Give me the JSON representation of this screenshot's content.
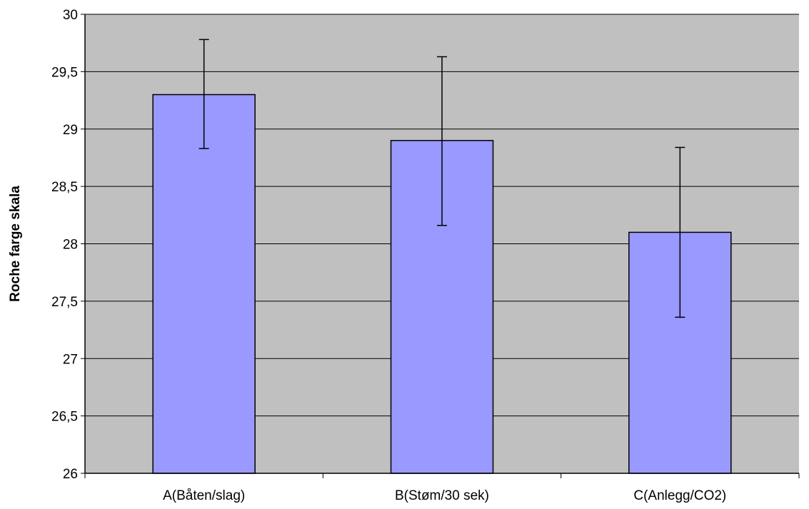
{
  "chart_data": {
    "type": "bar",
    "title": "",
    "xlabel": "",
    "ylabel": "Roche farge skala",
    "categories": [
      "A(Båten/slag)",
      "B(Støm/30 sek)",
      "C(Anlegg/CO2)"
    ],
    "values": [
      29.3,
      28.9,
      28.1
    ],
    "error_low": [
      28.83,
      28.16,
      27.36
    ],
    "error_high": [
      29.78,
      29.63,
      28.84
    ],
    "ylim": [
      26,
      30
    ],
    "yticks": [
      26,
      26.5,
      27,
      27.5,
      28,
      28.5,
      29,
      29.5,
      30
    ],
    "ytick_labels": [
      "26",
      "26,5",
      "27",
      "27,5",
      "28",
      "28,5",
      "29",
      "29,5",
      "30"
    ],
    "grid": true,
    "legend": "none",
    "colors": {
      "bar_fill": "#9999ff",
      "bar_stroke": "#000000",
      "plot_background": "#c0c0c0",
      "gridline": "#000000"
    }
  }
}
